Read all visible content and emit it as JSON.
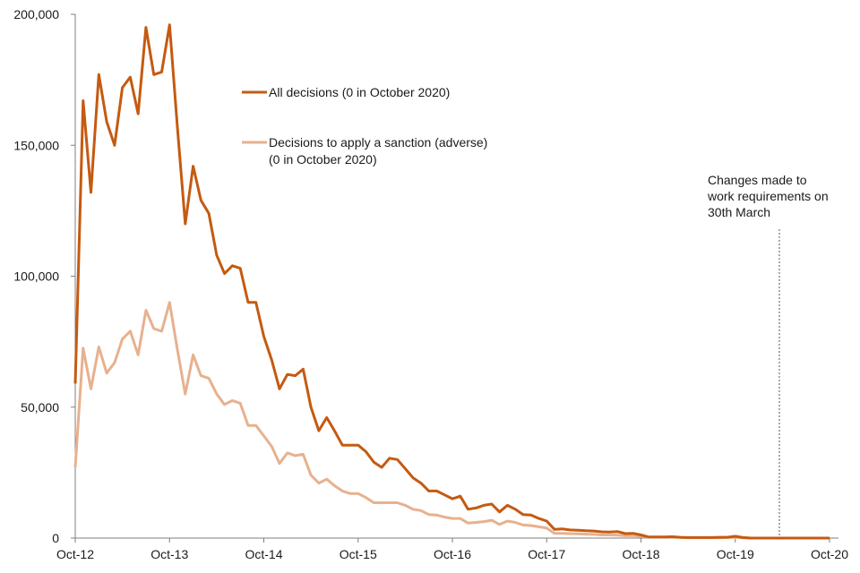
{
  "chart_data": {
    "type": "line",
    "title": "",
    "xlabel": "",
    "ylabel": "",
    "ylim": [
      0,
      200000
    ],
    "yticks": [
      "0",
      "50,000",
      "100,000",
      "150,000",
      "200,000"
    ],
    "xticks": [
      "Oct-12",
      "Oct-13",
      "Oct-14",
      "Oct-15",
      "Oct-16",
      "Oct-17",
      "Oct-18",
      "Oct-19",
      "Oct-20"
    ],
    "grid": false,
    "legend_position": "top-center",
    "x_start": "Oct-12",
    "x_end": "Oct-20",
    "series": [
      {
        "name": "All decisions (0 in October 2020)",
        "color": "#c55a11",
        "values": [
          59000,
          167000,
          132000,
          177000,
          159000,
          150000,
          172000,
          176000,
          162000,
          195000,
          177000,
          178000,
          196000,
          157000,
          120000,
          142000,
          129000,
          124000,
          108000,
          101000,
          104000,
          103000,
          90000,
          90000,
          77000,
          68000,
          57000,
          62500,
          62000,
          64500,
          50000,
          41000,
          46000,
          41000,
          35500,
          35500,
          35500,
          33000,
          29000,
          27000,
          30500,
          30000,
          26500,
          23000,
          21000,
          18000,
          18000,
          16500,
          15000,
          16000,
          11000,
          11500,
          12500,
          13000,
          10000,
          12500,
          11000,
          9000,
          8800,
          7500,
          6500,
          3300,
          3500,
          3100,
          3000,
          2800,
          2700,
          2400,
          2300,
          2500,
          1700,
          1800,
          1200,
          400,
          400,
          400,
          500,
          300,
          200,
          200,
          200,
          200,
          300,
          300,
          700,
          200,
          0,
          0,
          0,
          0,
          0,
          0,
          0,
          0,
          0,
          0,
          0
        ]
      },
      {
        "name": "Decisions to apply a sanction (adverse) (0 in October 2020)",
        "color": "#e7b18f",
        "values": [
          27000,
          72500,
          57000,
          73000,
          63000,
          67000,
          76000,
          79000,
          70000,
          87000,
          80000,
          79000,
          90000,
          72000,
          55000,
          70000,
          62000,
          61000,
          55000,
          51000,
          52500,
          51500,
          43000,
          43000,
          39000,
          35000,
          28500,
          32500,
          31500,
          32000,
          24000,
          21000,
          22500,
          20000,
          18000,
          17000,
          17000,
          15500,
          13500,
          13500,
          13500,
          13500,
          12500,
          11000,
          10500,
          9000,
          8800,
          8000,
          7500,
          7500,
          5700,
          6000,
          6300,
          6800,
          5200,
          6500,
          6000,
          5000,
          4800,
          4300,
          3800,
          1800,
          1800,
          1700,
          1600,
          1500,
          1400,
          1200,
          1200,
          1100,
          900,
          900,
          700,
          300,
          300,
          300,
          300,
          200,
          150,
          150,
          150,
          150,
          150,
          200,
          300,
          100,
          0,
          0,
          0,
          0,
          0,
          0,
          0,
          0,
          0,
          0,
          0
        ]
      }
    ],
    "legend": [
      {
        "line1": "All decisions (0 in October 2020)",
        "line2": ""
      },
      {
        "line1": "Decisions to apply a sanction (adverse)",
        "line2": "(0 in October 2020)"
      }
    ],
    "annotation": {
      "lines": [
        "Changes made to",
        "work requirements  on",
        "30th March"
      ],
      "x_date": "Mar-20"
    }
  }
}
